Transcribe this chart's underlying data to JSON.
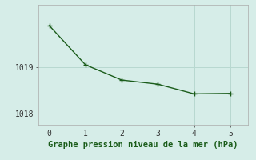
{
  "x": [
    0,
    1,
    2,
    3,
    4,
    5
  ],
  "y": [
    1019.9,
    1019.05,
    1018.72,
    1018.63,
    1018.42,
    1018.43
  ],
  "line_color": "#1a5c1a",
  "marker": "+",
  "marker_size": 4,
  "line_width": 1.0,
  "background_color": "#d6ede8",
  "grid_color": "#b8d8d0",
  "xlabel": "Graphe pression niveau de la mer (hPa)",
  "xlabel_color": "#1a5c1a",
  "xlabel_fontsize": 7.5,
  "xlim": [
    -0.3,
    5.5
  ],
  "ylim": [
    1017.75,
    1020.35
  ],
  "yticks": [
    1018,
    1019
  ],
  "xticks": [
    0,
    1,
    2,
    3,
    4,
    5
  ],
  "tick_fontsize": 7.0,
  "figsize": [
    3.2,
    2.0
  ],
  "dpi": 100
}
